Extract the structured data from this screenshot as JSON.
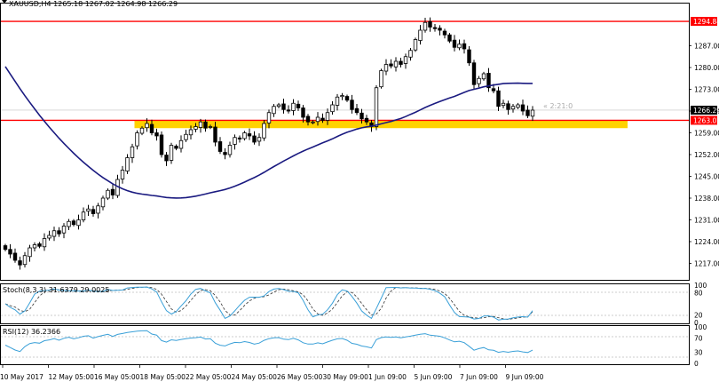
{
  "header": {
    "symbol_line": "XAUUSD,H4  1265.18 1267.02 1264.98 1266.29"
  },
  "countdown": "« 2:21:0",
  "colors": {
    "bull": "#ffffff",
    "bear": "#000000",
    "ma": "#1a1a80",
    "level": "#ff0000",
    "zone": "#ffd200",
    "stoch_main": "#3aa0d8",
    "stoch_signal": "#333333",
    "rsi": "#3aa0d8"
  },
  "price_labels": {
    "resistance": "1294.84",
    "support": "1263.02",
    "current": "1266.29"
  },
  "chart_data": [
    {
      "type": "candlestick",
      "title": "XAUUSD,H4",
      "ylim": [
        1212.0,
        1300.0
      ],
      "y_ticks": [
        "1287.00",
        "1280.00",
        "1273.00",
        "1266.00",
        "1259.00",
        "1252.00",
        "1245.00",
        "1238.00",
        "1231.00",
        "1224.00",
        "1217.00"
      ],
      "x_ticks": [
        "10 May 2017",
        "12 May 05:00",
        "16 May 05:00",
        "18 May 05:00",
        "22 May 05:00",
        "24 May 05:00",
        "26 May 05:00",
        "30 May 09:00",
        "1 Jun 09:00",
        "5 Jun 09:00",
        "7 Jun 09:00",
        "9 Jun 09:00"
      ],
      "closes": [
        1221.5,
        1220.0,
        1218.0,
        1216.5,
        1219.5,
        1222.0,
        1223.0,
        1222.5,
        1225.0,
        1226.0,
        1227.5,
        1226.5,
        1229.0,
        1230.5,
        1229.5,
        1231.0,
        1233.5,
        1234.5,
        1233.0,
        1235.5,
        1238.0,
        1240.5,
        1239.0,
        1244.0,
        1247.0,
        1251.0,
        1254.5,
        1259.0,
        1260.5,
        1262.0,
        1259.0,
        1258.0,
        1252.0,
        1250.0,
        1255.0,
        1254.0,
        1256.5,
        1258.5,
        1260.0,
        1261.0,
        1262.5,
        1260.5,
        1261.0,
        1256.0,
        1253.0,
        1252.0,
        1255.0,
        1257.5,
        1257.0,
        1259.0,
        1258.0,
        1256.0,
        1257.5,
        1262.0,
        1265.5,
        1267.5,
        1268.0,
        1266.5,
        1266.0,
        1268.5,
        1267.0,
        1264.0,
        1262.5,
        1262.5,
        1264.0,
        1263.0,
        1265.5,
        1268.0,
        1270.5,
        1271.0,
        1269.5,
        1266.5,
        1265.5,
        1263.5,
        1262.5,
        1261.0,
        1273.5,
        1279.0,
        1281.0,
        1280.5,
        1282.0,
        1281.0,
        1283.5,
        1285.5,
        1289.0,
        1292.0,
        1294.5,
        1293.0,
        1292.5,
        1292.0,
        1290.5,
        1288.5,
        1286.5,
        1287.5,
        1286.0,
        1281.5,
        1274.5,
        1276.5,
        1278.0,
        1273.5,
        1272.5,
        1267.5,
        1268.5,
        1266.5,
        1267.5,
        1268.0,
        1266.0,
        1264.5,
        1266.29
      ],
      "ma_period": 50,
      "support_level": 1263.02,
      "resistance_level": 1294.84,
      "zone": [
        1260.5,
        1263.0
      ]
    },
    {
      "type": "line",
      "title": "Stoch(8,3,3) 31.6379 29.0025",
      "ylim": [
        0,
        100
      ],
      "levels": [
        80,
        20
      ],
      "y_ticks": [
        "100",
        "80",
        "20",
        "0"
      ],
      "main_last": 31.6379,
      "signal_last": 29.0025
    },
    {
      "type": "line",
      "title": "RSI(12) 36.2366",
      "ylim": [
        0,
        100
      ],
      "levels": [
        70,
        30
      ],
      "y_ticks": [
        "100",
        "70",
        "30",
        "0"
      ],
      "value_last": 36.2366
    }
  ]
}
